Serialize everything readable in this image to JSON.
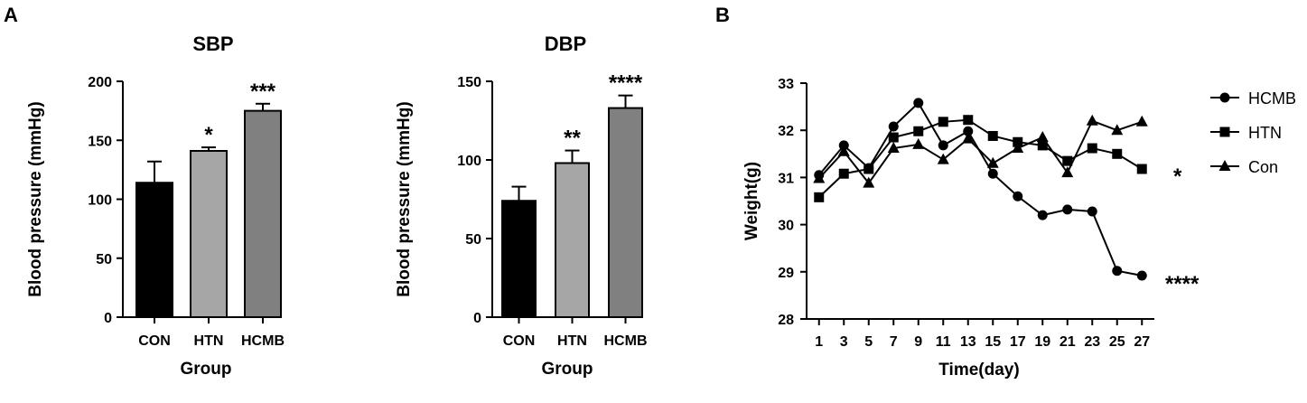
{
  "panels": {
    "a": "A",
    "b": "B"
  },
  "chart_data": [
    {
      "type": "bar",
      "title": "SBP",
      "xlabel": "Group",
      "ylabel": "Blood pressure (mmHg)",
      "categories": [
        "CON",
        "HTN",
        "HCMB"
      ],
      "values": [
        114,
        141,
        175
      ],
      "errors": [
        18,
        3,
        6
      ],
      "significance": [
        "",
        "*",
        "***"
      ],
      "ylim": [
        0,
        200
      ],
      "yticks": [
        0,
        50,
        100,
        150,
        200
      ],
      "colors": [
        "#000000",
        "#a6a6a6",
        "#808080"
      ]
    },
    {
      "type": "bar",
      "title": "DBP",
      "xlabel": "Group",
      "ylabel": "Blood pressure (mmHg)",
      "categories": [
        "CON",
        "HTN",
        "HCMB"
      ],
      "values": [
        74,
        98,
        133
      ],
      "errors": [
        9,
        8,
        8
      ],
      "significance": [
        "",
        "**",
        "****"
      ],
      "ylim": [
        0,
        150
      ],
      "yticks": [
        0,
        50,
        100,
        150
      ],
      "colors": [
        "#000000",
        "#a6a6a6",
        "#808080"
      ]
    },
    {
      "type": "line",
      "title": "",
      "xlabel": "Time(day)",
      "ylabel": "Weight(g)",
      "x": [
        1,
        3,
        5,
        7,
        9,
        11,
        13,
        15,
        17,
        19,
        21,
        23,
        25,
        27
      ],
      "xlim": [
        0,
        28
      ],
      "ylim": [
        28,
        33
      ],
      "yticks": [
        28,
        29,
        30,
        31,
        32,
        33
      ],
      "series": [
        {
          "name": "HCMB",
          "marker": "circle",
          "values": [
            31.05,
            31.68,
            31.2,
            32.08,
            32.58,
            31.68,
            31.98,
            31.08,
            30.6,
            30.2,
            30.32,
            30.28,
            29.02,
            28.92
          ],
          "significance": "****"
        },
        {
          "name": "HTN",
          "marker": "square",
          "values": [
            30.58,
            31.08,
            31.18,
            31.85,
            31.98,
            32.18,
            32.22,
            31.88,
            31.75,
            31.68,
            31.35,
            31.62,
            31.5,
            31.18
          ],
          "significance": "*"
        },
        {
          "name": "Con",
          "marker": "triangle",
          "values": [
            30.98,
            31.55,
            30.88,
            31.62,
            31.7,
            31.38,
            31.82,
            31.3,
            31.62,
            31.85,
            31.1,
            32.2,
            32.0,
            32.18
          ],
          "significance": ""
        }
      ],
      "legend": "right"
    }
  ]
}
